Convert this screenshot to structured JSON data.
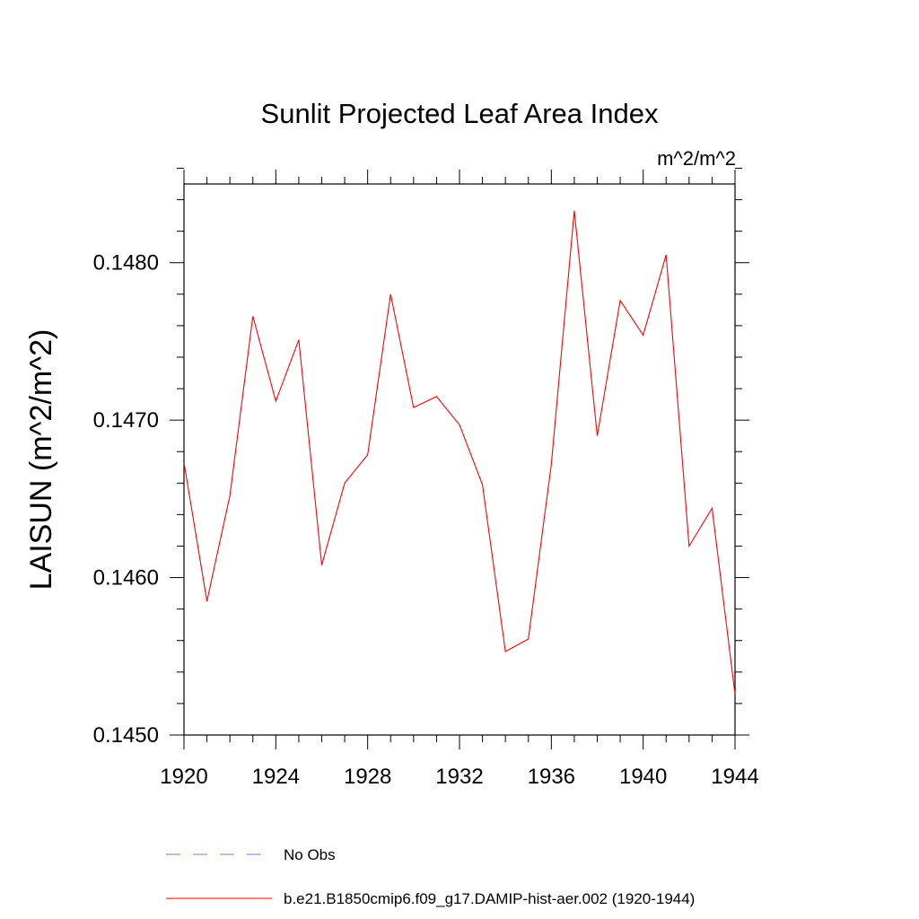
{
  "chart_data": {
    "type": "line",
    "title": "Sunlit Projected Leaf Area Index",
    "units_label": "m^2/m^2",
    "ylabel": "LAISUN  (m^2/m^2)",
    "xlabel": "",
    "xlim": [
      1920,
      1944
    ],
    "ylim": [
      0.145,
      0.1485
    ],
    "x_ticks": [
      1920,
      1924,
      1928,
      1932,
      1936,
      1940,
      1944
    ],
    "y_ticks": [
      0.145,
      0.146,
      0.147,
      0.148
    ],
    "y_tick_labels": [
      "0.1450",
      "0.1460",
      "0.1470",
      "0.1480"
    ],
    "grid": false,
    "series": [
      {
        "name": "b.e21.B1850cmip6.f09_g17.DAMIP-hist-aer.002 (1920-1944)",
        "color": "#ff0000",
        "dash": "solid",
        "x": [
          1920,
          1921,
          1922,
          1923,
          1924,
          1925,
          1926,
          1927,
          1928,
          1929,
          1930,
          1931,
          1932,
          1933,
          1934,
          1935,
          1936,
          1937,
          1938,
          1939,
          1940,
          1941,
          1942,
          1943,
          1944
        ],
        "values": [
          0.14673,
          0.14585,
          0.14652,
          0.14766,
          0.14712,
          0.14751,
          0.14608,
          0.1466,
          0.14678,
          0.1478,
          0.14708,
          0.14715,
          0.14697,
          0.14659,
          0.14553,
          0.14561,
          0.14672,
          0.14833,
          0.1469,
          0.14776,
          0.14754,
          0.14805,
          0.1462,
          0.14644,
          0.14526
        ]
      }
    ],
    "legend": {
      "placement": "bottom",
      "entries": [
        {
          "label": "No Obs",
          "color": "#7777cc",
          "dash": "dashed"
        },
        {
          "label": "b.e21.B1850cmip6.f09_g17.DAMIP-hist-aer.002 (1920-1944)",
          "color": "#ff0000",
          "dash": "solid"
        }
      ]
    }
  }
}
